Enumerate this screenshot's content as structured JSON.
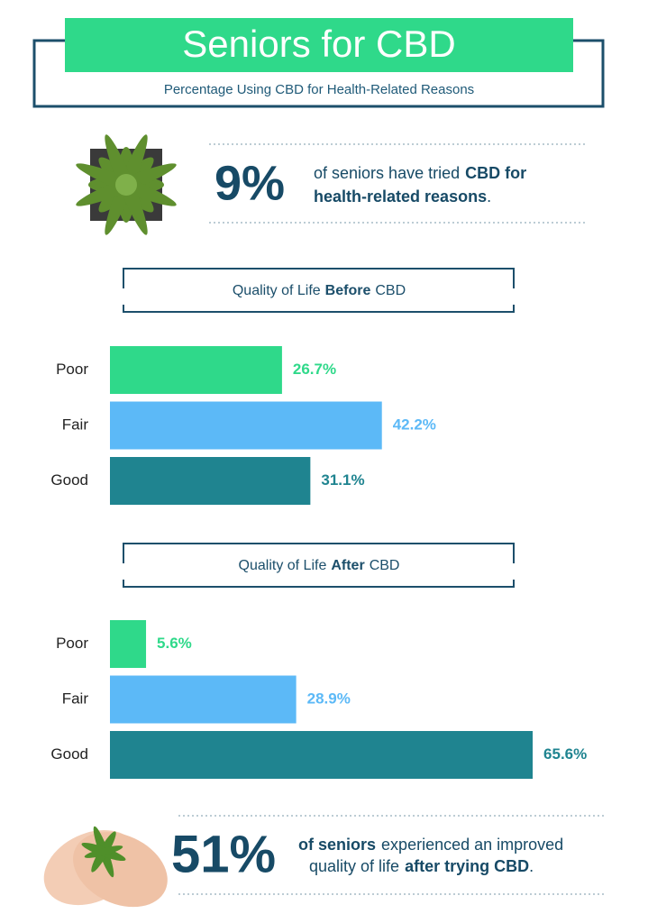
{
  "header": {
    "title": "Seniors for CBD",
    "subtitle": "Percentage Using CBD for Health-Related Reasons"
  },
  "stat_top": {
    "figure": "9%",
    "lines": [
      [
        "of seniors have tried",
        "CBD for"
      ],
      [
        "health-related reasons",
        "."
      ]
    ]
  },
  "chart_data": [
    {
      "type": "bar",
      "orientation": "horizontal",
      "title": [
        "Quality of Life",
        "Before",
        "CBD"
      ],
      "categories": [
        "Poor",
        "Fair",
        "Good"
      ],
      "values": [
        26.7,
        42.2,
        31.1
      ],
      "value_labels": [
        "26.7%",
        "42.2%",
        "31.1%"
      ],
      "colors": [
        "#2fd98a",
        "#5cb9f7",
        "#1f8490"
      ]
    },
    {
      "type": "bar",
      "orientation": "horizontal",
      "title": [
        "Quality of Life",
        "After",
        "CBD"
      ],
      "categories": [
        "Poor",
        "Fair",
        "Good"
      ],
      "values": [
        5.6,
        28.9,
        65.6
      ],
      "value_labels": [
        "5.6%",
        "28.9%",
        "65.6%"
      ],
      "colors": [
        "#2fd98a",
        "#5cb9f7",
        "#1f8490"
      ]
    }
  ],
  "stat_bottom": {
    "figure": "51%",
    "lines": [
      [
        "of seniors",
        "experienced an improved"
      ],
      [
        "quality of life",
        "after trying CBD",
        "."
      ]
    ]
  }
}
